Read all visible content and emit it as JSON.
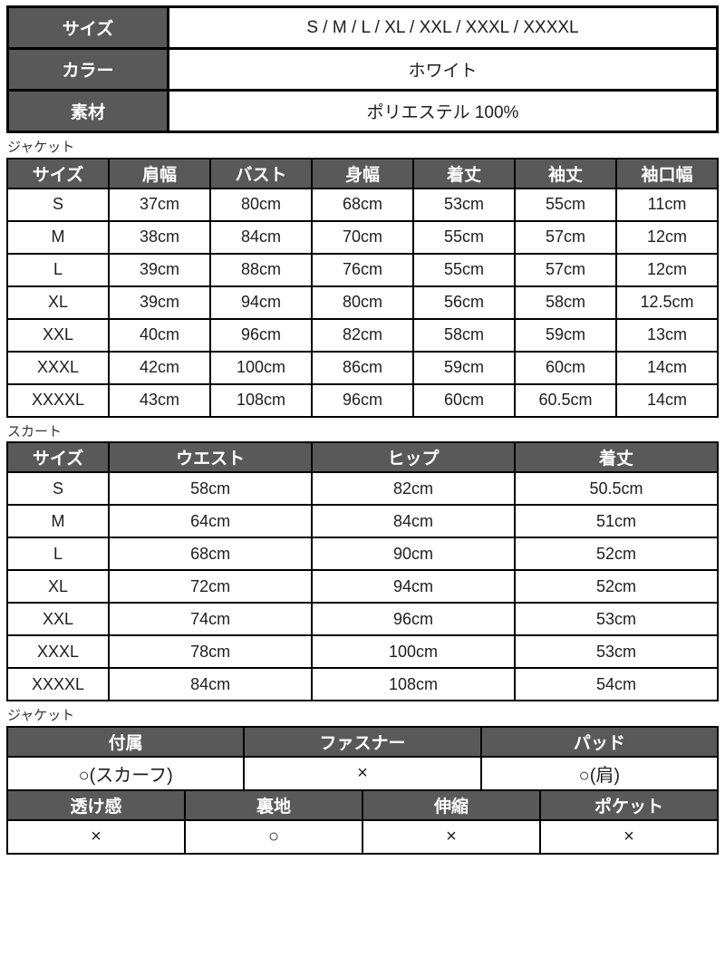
{
  "colors": {
    "header_bg": "#595959",
    "header_text": "#ffffff",
    "border": "#000000",
    "body_text": "#1e1e1e",
    "label_text": "#333333",
    "background": "#ffffff"
  },
  "specs": {
    "rows": [
      {
        "label": "サイズ",
        "value": "S / M / L / XL / XXL / XXXL / XXXXL"
      },
      {
        "label": "カラー",
        "value": "ホワイト"
      },
      {
        "label": "素材",
        "value": "ポリエステル 100%"
      }
    ]
  },
  "jacket_sizes": {
    "section_label": "ジャケット",
    "headers": [
      "サイズ",
      "肩幅",
      "バスト",
      "身幅",
      "着丈",
      "袖丈",
      "袖口幅"
    ],
    "rows": [
      [
        "S",
        "37cm",
        "80cm",
        "68cm",
        "53cm",
        "55cm",
        "11cm"
      ],
      [
        "M",
        "38cm",
        "84cm",
        "70cm",
        "55cm",
        "57cm",
        "12cm"
      ],
      [
        "L",
        "39cm",
        "88cm",
        "76cm",
        "55cm",
        "57cm",
        "12cm"
      ],
      [
        "XL",
        "39cm",
        "94cm",
        "80cm",
        "56cm",
        "58cm",
        "12.5cm"
      ],
      [
        "XXL",
        "40cm",
        "96cm",
        "82cm",
        "58cm",
        "59cm",
        "13cm"
      ],
      [
        "XXXL",
        "42cm",
        "100cm",
        "86cm",
        "59cm",
        "60cm",
        "14cm"
      ],
      [
        "XXXXL",
        "43cm",
        "108cm",
        "96cm",
        "60cm",
        "60.5cm",
        "14cm"
      ]
    ]
  },
  "skirt_sizes": {
    "section_label": "スカート",
    "headers": [
      "サイズ",
      "ウエスト",
      "ヒップ",
      "着丈"
    ],
    "rows": [
      [
        "S",
        "58cm",
        "82cm",
        "50.5cm"
      ],
      [
        "M",
        "64cm",
        "84cm",
        "51cm"
      ],
      [
        "L",
        "68cm",
        "90cm",
        "52cm"
      ],
      [
        "XL",
        "72cm",
        "94cm",
        "52cm"
      ],
      [
        "XXL",
        "74cm",
        "96cm",
        "53cm"
      ],
      [
        "XXXL",
        "78cm",
        "100cm",
        "53cm"
      ],
      [
        "XXXXL",
        "84cm",
        "108cm",
        "54cm"
      ]
    ]
  },
  "jacket_features": {
    "section_label": "ジャケット",
    "group1": {
      "headers": [
        "付属",
        "ファスナー",
        "パッド"
      ],
      "values": [
        "○(スカーフ)",
        "×",
        "○(肩)"
      ]
    },
    "group2": {
      "headers": [
        "透け感",
        "裏地",
        "伸縮",
        "ポケット"
      ],
      "values": [
        "×",
        "○",
        "×",
        "×"
      ]
    }
  }
}
